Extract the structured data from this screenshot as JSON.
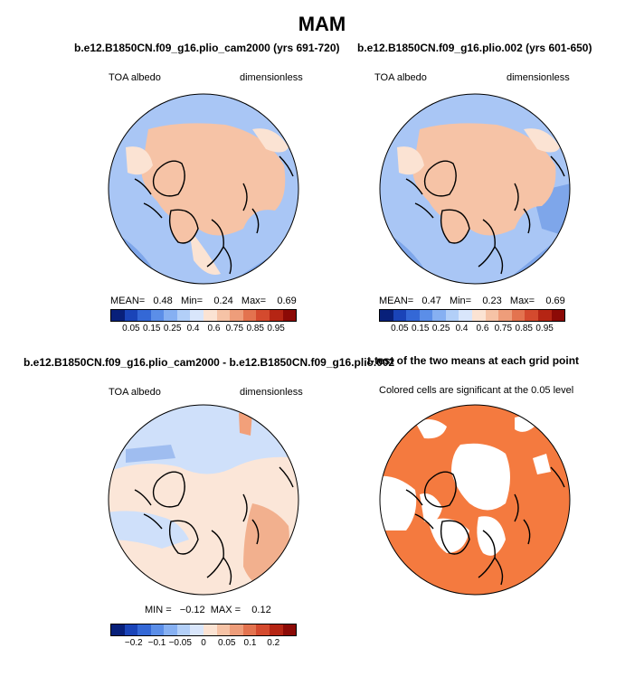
{
  "title": "MAM",
  "panels": {
    "top_left": {
      "title": "b.e12.B1850CN.f09_g16.plio_cam2000 (yrs 691-720)",
      "variable": "TOA albedo",
      "units": "dimensionless",
      "stats": "MEAN=   0.48   Min=    0.24   Max=    0.69"
    },
    "top_right": {
      "title": "b.e12.B1850CN.f09_g16.plio.002 (yrs 601-650)",
      "variable": "TOA albedo",
      "units": "dimensionless",
      "stats": "MEAN=   0.47   Min=    0.23   Max=    0.69"
    },
    "bottom_left": {
      "title": "b.e12.B1850CN.f09_g16.plio_cam2000 - b.e12.B1850CN.f09_g16.plio.002",
      "variable": "TOA albedo",
      "units": "dimensionless",
      "stats": "MIN =   −0.12  MAX =    0.12"
    },
    "bottom_right": {
      "title": "t-test of the two means at each grid point",
      "note": "Colored cells are significant at the 0.05 level"
    }
  },
  "colorbar_absolute": {
    "labels": [
      "0.05",
      "0.15",
      "0.25",
      "0.4",
      "0.6",
      "0.75",
      "0.85",
      "0.95"
    ],
    "colors": [
      "#08207a",
      "#1a44b8",
      "#3468d6",
      "#5b8ee8",
      "#86b0f2",
      "#b2cff8",
      "#d9e6fb",
      "#fbe3d3",
      "#f6c3a6",
      "#ee9d7a",
      "#e3734f",
      "#d44a2e",
      "#b52514",
      "#8c0a06"
    ]
  },
  "colorbar_diff": {
    "labels": [
      "−0.2",
      "−0.1",
      "−0.05",
      "0",
      "0.05",
      "0.1",
      "0.2"
    ],
    "colors": [
      "#08207a",
      "#1a44b8",
      "#3468d6",
      "#5b8ee8",
      "#86b0f2",
      "#b2cff8",
      "#d9e6fb",
      "#fbe3d3",
      "#f6c3a6",
      "#ee9d7a",
      "#e3734f",
      "#d44a2e",
      "#b52514",
      "#8c0a06"
    ]
  },
  "map_colors": {
    "ocean_blue": "#a9c6f5",
    "deep_blue": "#7ea6ea",
    "land_peach": "#f6c3a6",
    "light_peach": "#fbe3d3",
    "diff_blue": "#cfe0fa",
    "diff_peach": "#fbe6d8",
    "diff_orange": "#f2b08e",
    "signif_orange": "#f47a3f"
  }
}
